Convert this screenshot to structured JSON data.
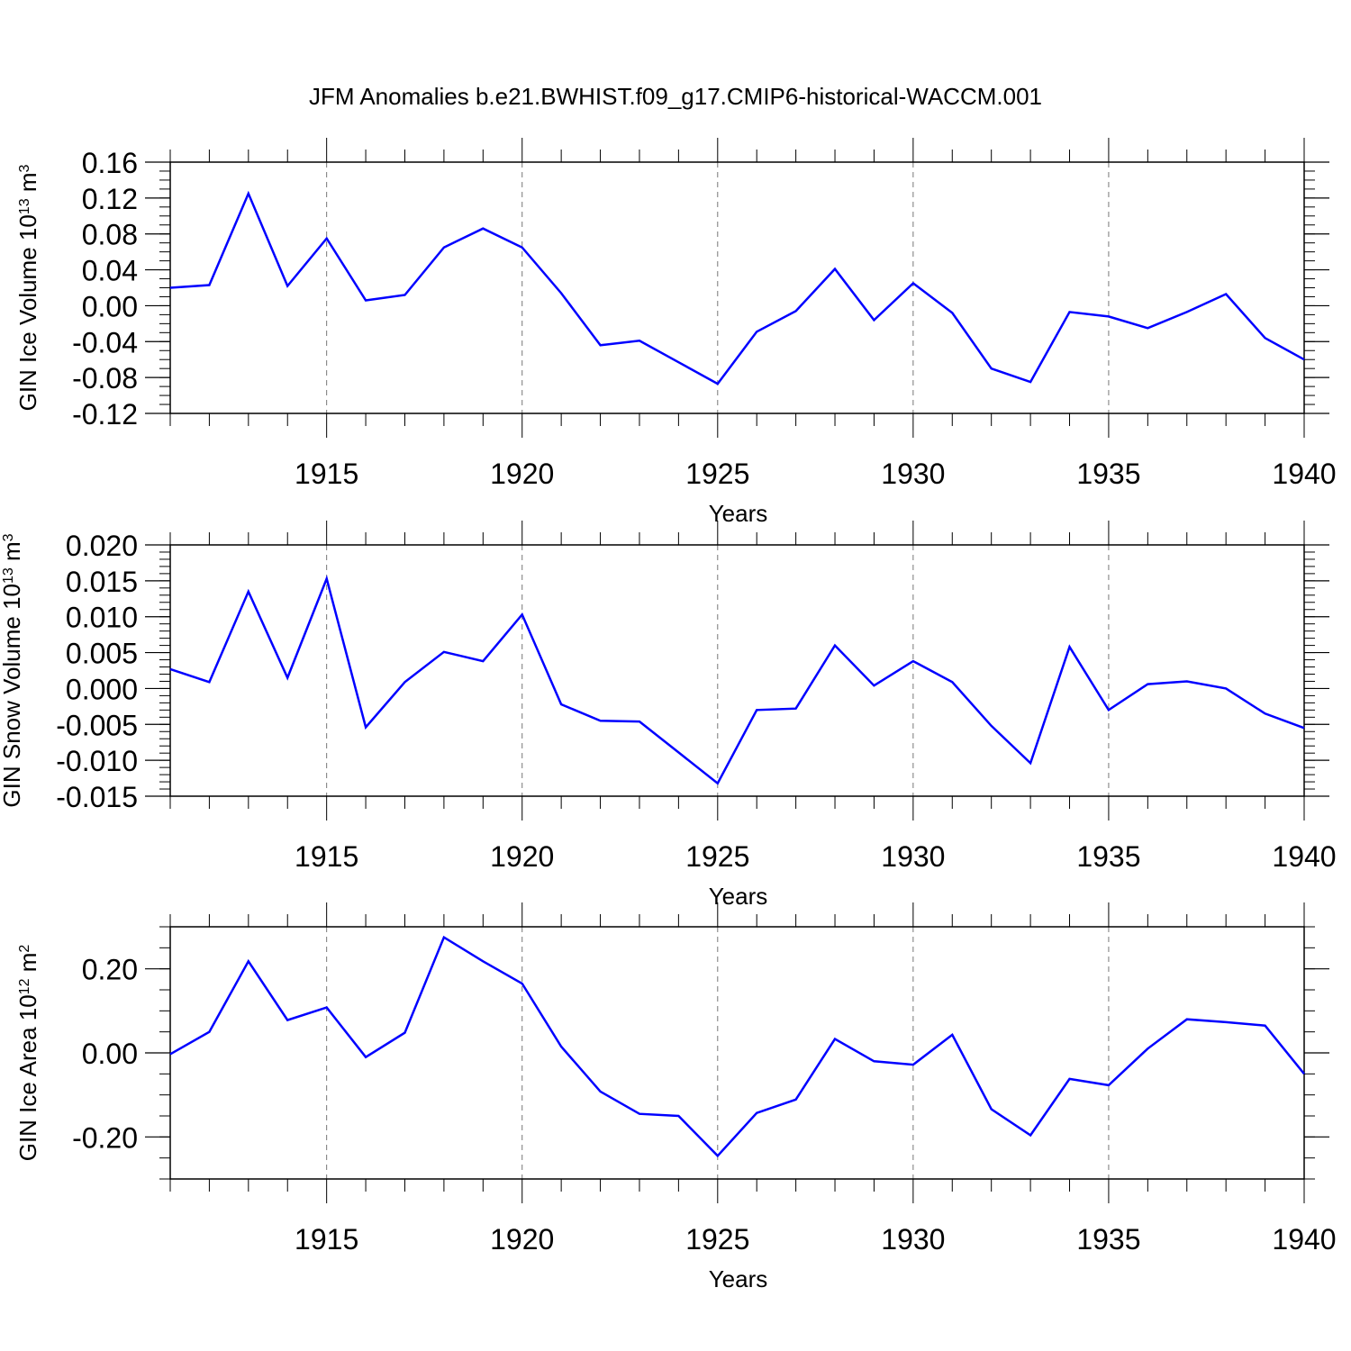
{
  "title": "JFM Anomalies b.e21.BWHIST.f09_g17.CMIP6-historical-WACCM.001",
  "line_color": "#0000ff",
  "chart_data": [
    {
      "type": "line",
      "ylabel_main": "GIN Ice Volume 10",
      "ylabel_exp": "13",
      "ylabel_unit": " m",
      "ylabel_unit_exp": "3",
      "xlabel": "Years",
      "xlim": [
        1911,
        1940
      ],
      "ylim": [
        -0.12,
        0.16
      ],
      "yticks": [
        "0.16",
        "0.12",
        "0.08",
        "0.04",
        "0.00",
        "-0.04",
        "-0.08",
        "-0.12"
      ],
      "xticks": [
        "1915",
        "1920",
        "1925",
        "1930",
        "1935",
        "1940"
      ],
      "x": [
        1911,
        1912,
        1913,
        1914,
        1915,
        1916,
        1917,
        1918,
        1919,
        1920,
        1921,
        1922,
        1923,
        1924,
        1925,
        1926,
        1927,
        1928,
        1929,
        1930,
        1931,
        1932,
        1933,
        1934,
        1935,
        1936,
        1937,
        1938,
        1939,
        1940
      ],
      "y": [
        0.02,
        0.023,
        0.125,
        0.022,
        0.075,
        0.006,
        0.012,
        0.065,
        0.086,
        0.065,
        0.014,
        -0.044,
        -0.039,
        -0.063,
        -0.087,
        -0.029,
        -0.006,
        0.041,
        -0.016,
        0.025,
        -0.008,
        -0.07,
        -0.085,
        -0.007,
        -0.012,
        -0.025,
        -0.007,
        0.013,
        -0.036,
        -0.06
      ]
    },
    {
      "type": "line",
      "ylabel_main": "GIN Snow Volume 10",
      "ylabel_exp": "13",
      "ylabel_unit": " m",
      "ylabel_unit_exp": "3",
      "xlabel": "Years",
      "xlim": [
        1911,
        1940
      ],
      "ylim": [
        -0.015,
        0.02
      ],
      "yticks": [
        "0.020",
        "0.015",
        "0.010",
        "0.005",
        "0.000",
        "-0.005",
        "-0.010",
        "-0.015"
      ],
      "xticks": [
        "1915",
        "1920",
        "1925",
        "1930",
        "1935",
        "1940"
      ],
      "x": [
        1911,
        1912,
        1913,
        1914,
        1915,
        1916,
        1917,
        1918,
        1919,
        1920,
        1921,
        1922,
        1923,
        1924,
        1925,
        1926,
        1927,
        1928,
        1929,
        1930,
        1931,
        1932,
        1933,
        1934,
        1935,
        1936,
        1937,
        1938,
        1939,
        1940
      ],
      "y": [
        0.0027,
        0.0009,
        0.0135,
        0.0015,
        0.0153,
        -0.0054,
        0.0009,
        0.0051,
        0.0038,
        0.0103,
        -0.0022,
        -0.0045,
        -0.0046,
        -0.0089,
        -0.0132,
        -0.003,
        -0.0028,
        0.006,
        0.0004,
        0.0038,
        0.0009,
        -0.0052,
        -0.0104,
        0.0058,
        -0.003,
        0.0006,
        0.001,
        0.0,
        -0.0035,
        -0.0055
      ]
    },
    {
      "type": "line",
      "ylabel_main": "GIN Ice Area 10",
      "ylabel_exp": "12",
      "ylabel_unit": " m",
      "ylabel_unit_exp": "2",
      "xlabel": "Years",
      "xlim": [
        1911,
        1940
      ],
      "ylim": [
        -0.3,
        0.3
      ],
      "yticks": [
        "0.20",
        "0.00",
        "-0.20"
      ],
      "xticks": [
        "1915",
        "1920",
        "1925",
        "1930",
        "1935",
        "1940"
      ],
      "x": [
        1911,
        1912,
        1913,
        1914,
        1915,
        1916,
        1917,
        1918,
        1919,
        1920,
        1921,
        1922,
        1923,
        1924,
        1925,
        1926,
        1927,
        1928,
        1929,
        1930,
        1931,
        1932,
        1933,
        1934,
        1935,
        1936,
        1937,
        1938,
        1939,
        1940
      ],
      "y": [
        -0.003,
        0.05,
        0.218,
        0.078,
        0.108,
        -0.01,
        0.048,
        0.275,
        0.218,
        0.165,
        0.015,
        -0.092,
        -0.145,
        -0.15,
        -0.245,
        -0.143,
        -0.111,
        0.033,
        -0.02,
        -0.028,
        0.043,
        -0.134,
        -0.196,
        -0.062,
        -0.077,
        0.01,
        0.08,
        0.073,
        0.065,
        -0.05
      ]
    }
  ]
}
